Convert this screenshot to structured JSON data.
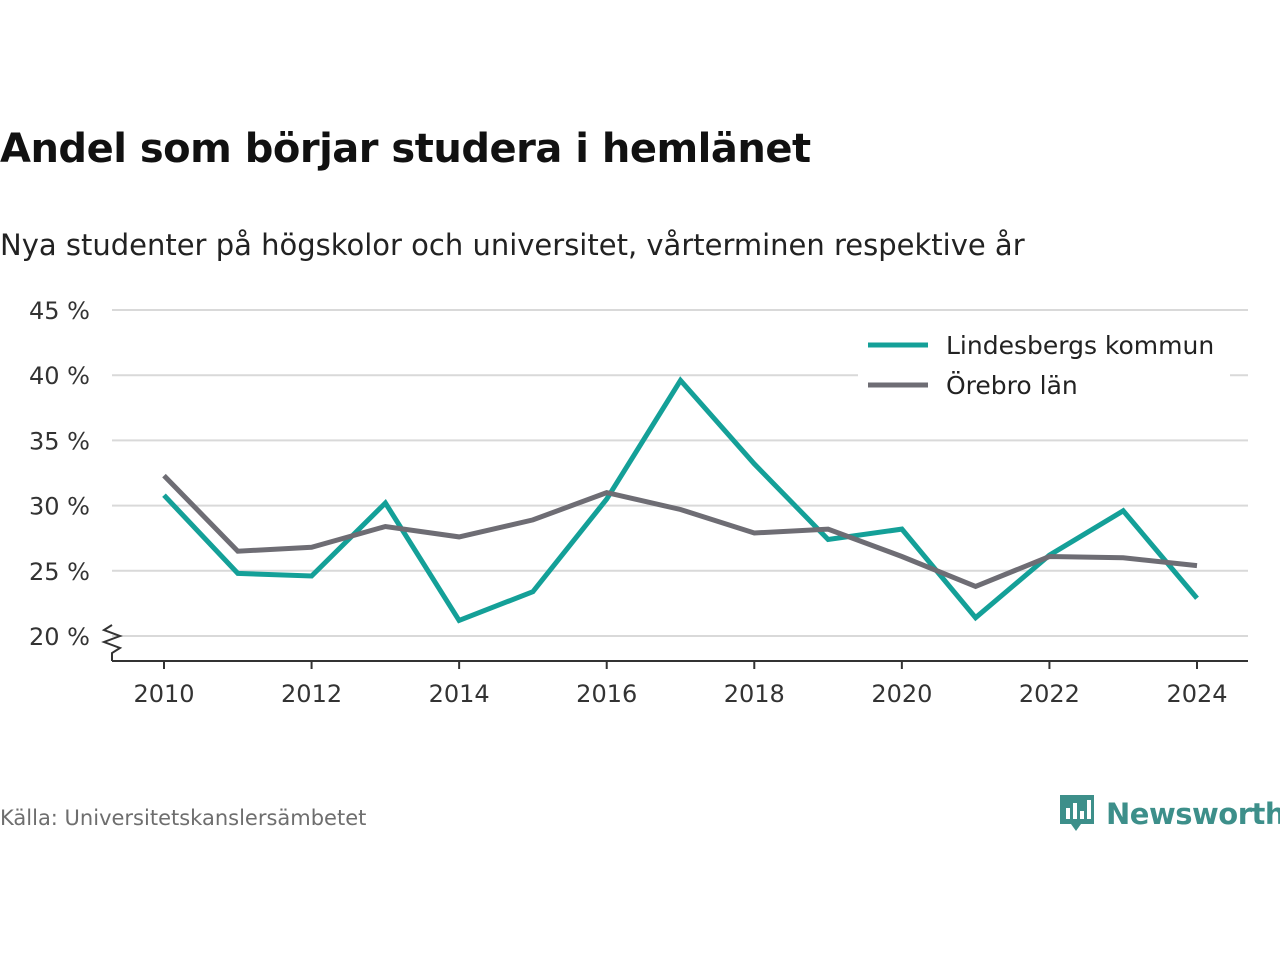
{
  "title": "Andel som börjar studera i hemlänet",
  "subtitle": "Nya studenter på högskolor och universitet, vårterminen respektive år",
  "source": "Källa: Universitetskanslersämbetet",
  "brand": {
    "name": "Newsworthy",
    "icon": "newsworthy-logo-icon",
    "color": "#3d8f8a"
  },
  "chart_data": {
    "type": "line",
    "title": "Andel som börjar studera i hemlänet",
    "x": [
      2010,
      2011,
      2012,
      2013,
      2014,
      2015,
      2016,
      2017,
      2018,
      2019,
      2020,
      2021,
      2022,
      2023,
      2024
    ],
    "x_ticks": [
      "2010",
      "2012",
      "2014",
      "2016",
      "2018",
      "2020",
      "2022",
      "2024"
    ],
    "y_ticks": [
      "20 %",
      "25 %",
      "30 %",
      "35 %",
      "40 %",
      "45 %"
    ],
    "ylim": [
      20,
      45
    ],
    "y_axis_break": true,
    "grid": true,
    "legend_position": "top-right",
    "series": [
      {
        "name": "Lindesbergs kommun",
        "color": "#14a098",
        "values": [
          30.8,
          24.8,
          24.6,
          30.2,
          21.2,
          23.4,
          30.5,
          39.6,
          33.2,
          27.4,
          28.2,
          21.4,
          26.2,
          29.6,
          22.9
        ]
      },
      {
        "name": "Örebro län",
        "color": "#6e6d74",
        "values": [
          32.3,
          26.5,
          26.8,
          28.4,
          27.6,
          28.9,
          31.0,
          29.7,
          27.9,
          28.2,
          26.1,
          23.8,
          26.1,
          26.0,
          25.4
        ]
      }
    ]
  }
}
